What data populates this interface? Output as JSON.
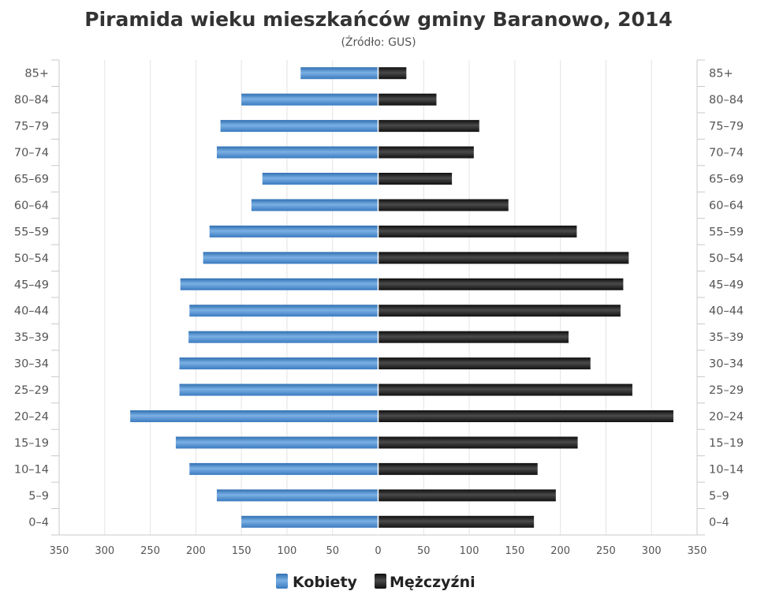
{
  "chart_data": {
    "type": "bar",
    "orientation": "horizontal",
    "layout": "population-pyramid",
    "title": "Piramida wieku mieszkańców gminy Baranowo, 2014",
    "subtitle": "(Źródło: GUS)",
    "categories": [
      "0-4",
      "5-9",
      "10-14",
      "15-19",
      "20-24",
      "25-29",
      "30-34",
      "35-39",
      "40-44",
      "45-49",
      "50-54",
      "55-59",
      "60-64",
      "65-69",
      "70-74",
      "75-79",
      "80-84",
      "85+"
    ],
    "category_labels": [
      "0–4",
      "5–9",
      "10–14",
      "15–19",
      "20–24",
      "25–29",
      "30–34",
      "35–39",
      "40–44",
      "45–49",
      "50–54",
      "55–59",
      "60–64",
      "65–69",
      "70–74",
      "75–79",
      "80–84",
      "85+"
    ],
    "series": [
      {
        "name": "Kobiety",
        "side": "left",
        "color": "#4a86c6",
        "values": [
          150,
          177,
          207,
          222,
          272,
          218,
          218,
          208,
          207,
          217,
          192,
          185,
          139,
          127,
          177,
          173,
          150,
          85
        ]
      },
      {
        "name": "Mężczyźni",
        "side": "right",
        "color": "#1f1f1f",
        "values": [
          171,
          195,
          175,
          219,
          324,
          279,
          233,
          209,
          266,
          269,
          275,
          218,
          143,
          81,
          105,
          111,
          64,
          31
        ]
      }
    ],
    "x_axis": {
      "range": [
        -350,
        350
      ],
      "tick_labels": [
        "350",
        "300",
        "250",
        "200",
        "150",
        "100",
        "50",
        "0",
        "50",
        "100",
        "150",
        "200",
        "250",
        "300",
        "350"
      ]
    },
    "grid": true,
    "legend_position": "bottom-center"
  }
}
